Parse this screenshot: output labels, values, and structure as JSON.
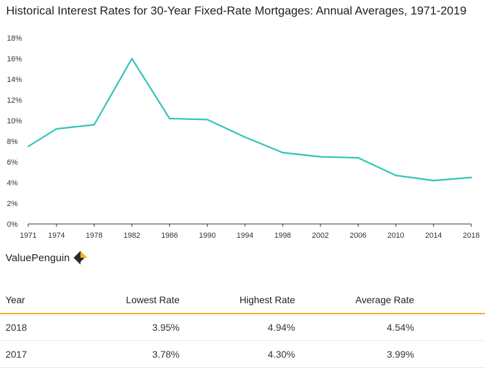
{
  "title": "Historical Interest Rates for 30-Year Fixed-Rate Mortgages: Annual Averages, 1971-2019",
  "brand": {
    "name": "ValuePenguin",
    "logo_icon": "valuepenguin-logo-icon"
  },
  "colors": {
    "line": "#2ec4b6",
    "axis": "#333333",
    "table_rule": "#f0b429"
  },
  "chart_data": {
    "type": "line",
    "title": "Historical Interest Rates for 30-Year Fixed-Rate Mortgages: Annual Averages, 1971-2019",
    "xlabel": "",
    "ylabel": "",
    "x": [
      1971,
      1974,
      1978,
      1982,
      1986,
      1990,
      1994,
      1998,
      2002,
      2006,
      2010,
      2014,
      2018
    ],
    "values": [
      7.5,
      9.2,
      9.6,
      16.0,
      10.2,
      10.1,
      8.4,
      6.9,
      6.5,
      6.4,
      4.7,
      4.2,
      4.5
    ],
    "xlim": [
      1971,
      2018
    ],
    "ylim": [
      0,
      18
    ],
    "x_ticks": [
      "1971",
      "1974",
      "1978",
      "1982",
      "1986",
      "1990",
      "1994",
      "1998",
      "2002",
      "2006",
      "2010",
      "2014",
      "2018"
    ],
    "y_ticks": [
      "0%",
      "2%",
      "4%",
      "6%",
      "8%",
      "10%",
      "12%",
      "14%",
      "16%",
      "18%"
    ],
    "grid": false
  },
  "table": {
    "headers": [
      "Year",
      "Lowest Rate",
      "Highest Rate",
      "Average Rate"
    ],
    "rows": [
      [
        "2018",
        "3.95%",
        "4.94%",
        "4.54%"
      ],
      [
        "2017",
        "3.78%",
        "4.30%",
        "3.99%"
      ]
    ]
  }
}
